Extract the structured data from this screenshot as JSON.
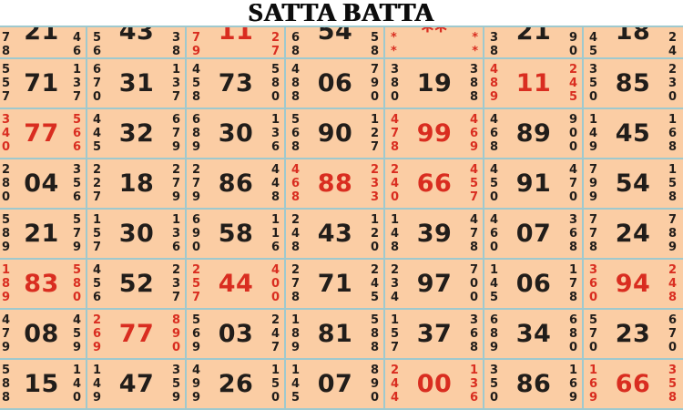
{
  "title": "SATTA BATTA",
  "colors": {
    "page_background": "#ffffff",
    "cell_background": "#fbcda4",
    "grid_line": "#9fc9ce",
    "digit_black": "#211d1a",
    "digit_red": "#d92d20"
  },
  "grid": {
    "rows": [
      {
        "cut": true,
        "cells": [
          {
            "left": [
              "7",
              "8"
            ],
            "big": "21",
            "right": [
              "4",
              "6"
            ],
            "color": "black"
          },
          {
            "left": [
              "5",
              "6"
            ],
            "big": "43",
            "right": [
              "3",
              "8"
            ],
            "color": "black"
          },
          {
            "left": [
              "7",
              "9"
            ],
            "big": "11",
            "right": [
              "2",
              "7"
            ],
            "color": "red"
          },
          {
            "left": [
              "6",
              "8"
            ],
            "big": "54",
            "right": [
              "5",
              "8"
            ],
            "color": "black"
          },
          {
            "left": [
              "*",
              "*"
            ],
            "big": "**",
            "right": [
              "*",
              "*"
            ],
            "color": "red"
          },
          {
            "left": [
              "3",
              "8"
            ],
            "big": "21",
            "right": [
              "9",
              "0"
            ],
            "color": "black"
          },
          {
            "left": [
              "4",
              "5"
            ],
            "big": "18",
            "right": [
              "2",
              "4"
            ],
            "color": "black"
          }
        ]
      },
      {
        "cut": false,
        "cells": [
          {
            "left": [
              "5",
              "5",
              "7"
            ],
            "big": "71",
            "right": [
              "1",
              "3",
              "7"
            ],
            "color": "black"
          },
          {
            "left": [
              "6",
              "7",
              "0"
            ],
            "big": "31",
            "right": [
              "1",
              "3",
              "7"
            ],
            "color": "black"
          },
          {
            "left": [
              "4",
              "5",
              "8"
            ],
            "big": "73",
            "right": [
              "5",
              "8",
              "0"
            ],
            "color": "black"
          },
          {
            "left": [
              "4",
              "8",
              "8"
            ],
            "big": "06",
            "right": [
              "7",
              "9",
              "0"
            ],
            "color": "black"
          },
          {
            "left": [
              "3",
              "8",
              "0"
            ],
            "big": "19",
            "right": [
              "3",
              "8",
              "8"
            ],
            "color": "black"
          },
          {
            "left": [
              "4",
              "8",
              "9"
            ],
            "big": "11",
            "right": [
              "2",
              "4",
              "5"
            ],
            "color": "red"
          },
          {
            "left": [
              "3",
              "5",
              "0"
            ],
            "big": "85",
            "right": [
              "2",
              "3",
              "0"
            ],
            "color": "black"
          }
        ]
      },
      {
        "cut": false,
        "cells": [
          {
            "left": [
              "3",
              "4",
              "0"
            ],
            "big": "77",
            "right": [
              "5",
              "6",
              "6"
            ],
            "color": "red"
          },
          {
            "left": [
              "4",
              "4",
              "5"
            ],
            "big": "32",
            "right": [
              "6",
              "7",
              "9"
            ],
            "color": "black"
          },
          {
            "left": [
              "6",
              "8",
              "9"
            ],
            "big": "30",
            "right": [
              "1",
              "3",
              "6"
            ],
            "color": "black"
          },
          {
            "left": [
              "5",
              "6",
              "8"
            ],
            "big": "90",
            "right": [
              "1",
              "2",
              "7"
            ],
            "color": "black"
          },
          {
            "left": [
              "4",
              "7",
              "8"
            ],
            "big": "99",
            "right": [
              "4",
              "6",
              "9"
            ],
            "color": "red"
          },
          {
            "left": [
              "4",
              "6",
              "8"
            ],
            "big": "89",
            "right": [
              "9",
              "0",
              "0"
            ],
            "color": "black"
          },
          {
            "left": [
              "1",
              "4",
              "9"
            ],
            "big": "45",
            "right": [
              "1",
              "6",
              "8"
            ],
            "color": "black"
          }
        ]
      },
      {
        "cut": false,
        "cells": [
          {
            "left": [
              "2",
              "8",
              "0"
            ],
            "big": "04",
            "right": [
              "3",
              "5",
              "6"
            ],
            "color": "black"
          },
          {
            "left": [
              "2",
              "2",
              "7"
            ],
            "big": "18",
            "right": [
              "2",
              "7",
              "9"
            ],
            "color": "black"
          },
          {
            "left": [
              "2",
              "7",
              "9"
            ],
            "big": "86",
            "right": [
              "4",
              "4",
              "8"
            ],
            "color": "black"
          },
          {
            "left": [
              "4",
              "6",
              "8"
            ],
            "big": "88",
            "right": [
              "2",
              "3",
              "3"
            ],
            "color": "red"
          },
          {
            "left": [
              "2",
              "4",
              "0"
            ],
            "big": "66",
            "right": [
              "4",
              "5",
              "7"
            ],
            "color": "red"
          },
          {
            "left": [
              "4",
              "5",
              "0"
            ],
            "big": "91",
            "right": [
              "4",
              "7",
              "0"
            ],
            "color": "black"
          },
          {
            "left": [
              "7",
              "9",
              "9"
            ],
            "big": "54",
            "right": [
              "1",
              "5",
              "8"
            ],
            "color": "black"
          }
        ]
      },
      {
        "cut": false,
        "cells": [
          {
            "left": [
              "5",
              "8",
              "9"
            ],
            "big": "21",
            "right": [
              "5",
              "7",
              "9"
            ],
            "color": "black"
          },
          {
            "left": [
              "1",
              "5",
              "7"
            ],
            "big": "30",
            "right": [
              "1",
              "3",
              "6"
            ],
            "color": "black"
          },
          {
            "left": [
              "6",
              "9",
              "0"
            ],
            "big": "58",
            "right": [
              "1",
              "1",
              "6"
            ],
            "color": "black"
          },
          {
            "left": [
              "2",
              "4",
              "8"
            ],
            "big": "43",
            "right": [
              "1",
              "2",
              "0"
            ],
            "color": "black"
          },
          {
            "left": [
              "1",
              "4",
              "8"
            ],
            "big": "39",
            "right": [
              "4",
              "7",
              "8"
            ],
            "color": "black"
          },
          {
            "left": [
              "4",
              "6",
              "0"
            ],
            "big": "07",
            "right": [
              "3",
              "6",
              "8"
            ],
            "color": "black"
          },
          {
            "left": [
              "7",
              "7",
              "8"
            ],
            "big": "24",
            "right": [
              "7",
              "8",
              "9"
            ],
            "color": "black"
          }
        ]
      },
      {
        "cut": false,
        "cells": [
          {
            "left": [
              "1",
              "8",
              "9"
            ],
            "big": "83",
            "right": [
              "5",
              "8",
              "0"
            ],
            "color": "red"
          },
          {
            "left": [
              "4",
              "5",
              "6"
            ],
            "big": "52",
            "right": [
              "2",
              "3",
              "7"
            ],
            "color": "black"
          },
          {
            "left": [
              "2",
              "5",
              "7"
            ],
            "big": "44",
            "right": [
              "4",
              "0",
              "0"
            ],
            "color": "red"
          },
          {
            "left": [
              "2",
              "7",
              "8"
            ],
            "big": "71",
            "right": [
              "2",
              "4",
              "5"
            ],
            "color": "black"
          },
          {
            "left": [
              "2",
              "3",
              "4"
            ],
            "big": "97",
            "right": [
              "7",
              "0",
              "0"
            ],
            "color": "black"
          },
          {
            "left": [
              "1",
              "4",
              "5"
            ],
            "big": "06",
            "right": [
              "1",
              "7",
              "8"
            ],
            "color": "black"
          },
          {
            "left": [
              "3",
              "6",
              "0"
            ],
            "big": "94",
            "right": [
              "2",
              "4",
              "8"
            ],
            "color": "red"
          }
        ]
      },
      {
        "cut": false,
        "cells": [
          {
            "left": [
              "4",
              "7",
              "9"
            ],
            "big": "08",
            "right": [
              "4",
              "5",
              "9"
            ],
            "color": "black"
          },
          {
            "left": [
              "2",
              "6",
              "9"
            ],
            "big": "77",
            "right": [
              "8",
              "9",
              "0"
            ],
            "color": "red"
          },
          {
            "left": [
              "5",
              "6",
              "9"
            ],
            "big": "03",
            "right": [
              "2",
              "4",
              "7"
            ],
            "color": "black"
          },
          {
            "left": [
              "1",
              "8",
              "9"
            ],
            "big": "81",
            "right": [
              "5",
              "8",
              "8"
            ],
            "color": "black"
          },
          {
            "left": [
              "1",
              "5",
              "7"
            ],
            "big": "37",
            "right": [
              "3",
              "6",
              "8"
            ],
            "color": "black"
          },
          {
            "left": [
              "6",
              "8",
              "9"
            ],
            "big": "34",
            "right": [
              "6",
              "8",
              "0"
            ],
            "color": "black"
          },
          {
            "left": [
              "5",
              "7",
              "0"
            ],
            "big": "23",
            "right": [
              "6",
              "7",
              "0"
            ],
            "color": "black"
          }
        ]
      },
      {
        "cut": false,
        "cells": [
          {
            "left": [
              "5",
              "8",
              "8"
            ],
            "big": "15",
            "right": [
              "1",
              "4",
              "0"
            ],
            "color": "black"
          },
          {
            "left": [
              "1",
              "4",
              "9"
            ],
            "big": "47",
            "right": [
              "3",
              "5",
              "9"
            ],
            "color": "black"
          },
          {
            "left": [
              "4",
              "9",
              "9"
            ],
            "big": "26",
            "right": [
              "1",
              "5",
              "0"
            ],
            "color": "black"
          },
          {
            "left": [
              "1",
              "4",
              "5"
            ],
            "big": "07",
            "right": [
              "8",
              "9",
              "0"
            ],
            "color": "black"
          },
          {
            "left": [
              "2",
              "4",
              "4"
            ],
            "big": "00",
            "right": [
              "1",
              "3",
              "6"
            ],
            "color": "red"
          },
          {
            "left": [
              "3",
              "5",
              "0"
            ],
            "big": "86",
            "right": [
              "1",
              "6",
              "9"
            ],
            "color": "black"
          },
          {
            "left": [
              "1",
              "6",
              "9"
            ],
            "big": "66",
            "right": [
              "3",
              "5",
              "8"
            ],
            "color": "red"
          }
        ]
      }
    ]
  }
}
